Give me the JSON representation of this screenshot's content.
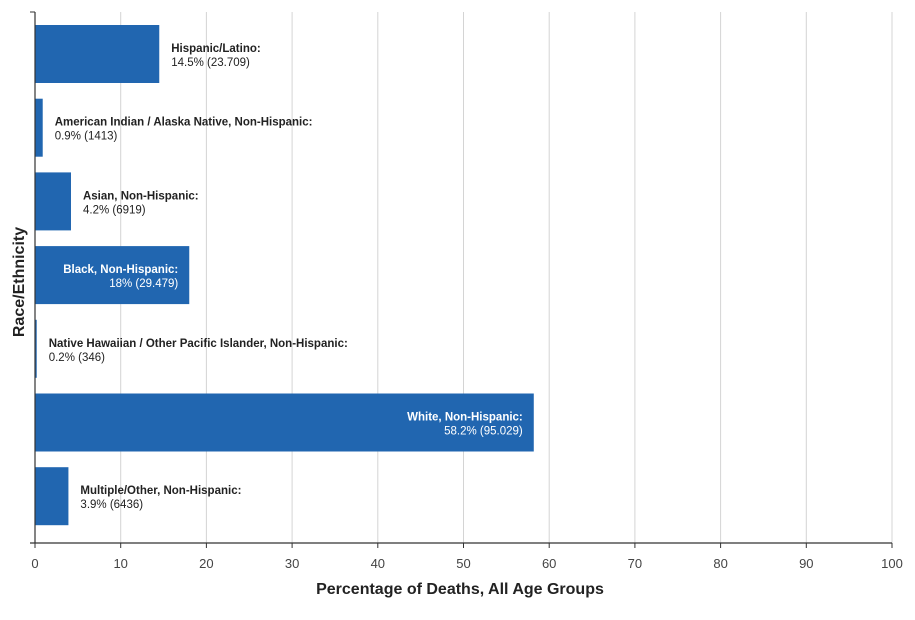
{
  "chart_data": {
    "type": "bar",
    "orientation": "horizontal",
    "xlabel": "Percentage of Deaths, All Age Groups",
    "ylabel": "Race/Ethnicity",
    "xlim": [
      0,
      100
    ],
    "xticks": [
      0,
      10,
      20,
      30,
      40,
      50,
      60,
      70,
      80,
      90,
      100
    ],
    "grid": true,
    "bar_color": "#2166b0",
    "categories": [
      "Hispanic/Latino:",
      "American Indian / Alaska Native, Non-Hispanic:",
      "Asian, Non-Hispanic:",
      "Black, Non-Hispanic:",
      "Native Hawaiian / Other Pacific Islander, Non-Hispanic:",
      "White, Non-Hispanic:",
      "Multiple/Other, Non-Hispanic:"
    ],
    "values": [
      14.5,
      0.9,
      4.2,
      18,
      0.2,
      58.2,
      3.9
    ],
    "value_labels": [
      "14.5% (23.709)",
      "0.9% (1413)",
      "4.2% (6919)",
      "18% (29.479)",
      "0.2% (346)",
      "58.2% (95.029)",
      "3.9% (6436)"
    ],
    "label_inside": [
      false,
      false,
      false,
      true,
      false,
      true,
      false
    ]
  }
}
